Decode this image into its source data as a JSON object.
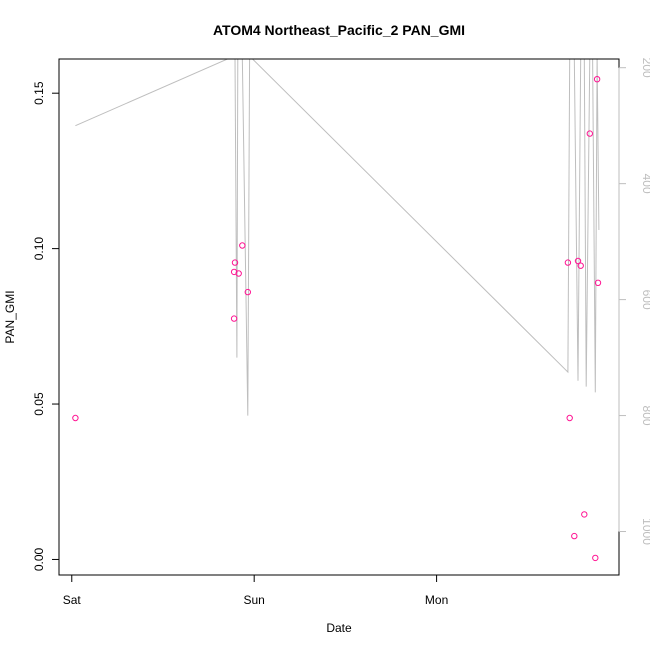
{
  "chart_data": {
    "type": "scatter",
    "title": "ATOM4 Northeast_Pacific_2 PAN_GMI",
    "xlabel": "Date",
    "ylabel": "PAN_GMI",
    "x_ticks": [
      {
        "label": "Sat",
        "value": 0
      },
      {
        "label": "Sun",
        "value": 1
      },
      {
        "label": "Mon",
        "value": 2
      }
    ],
    "xlim": [
      -0.07,
      3.0
    ],
    "ylim": [
      -0.005,
      0.161
    ],
    "y_ticks": [
      0.0,
      0.05,
      0.1,
      0.15
    ],
    "y_tick_labels": [
      "0.00",
      "0.05",
      "0.10",
      "0.15"
    ],
    "right_axis": {
      "label": "",
      "ylim": [
        1075,
        185
      ],
      "ticks": [
        200,
        400,
        600,
        800,
        1000
      ],
      "tick_labels": [
        "200",
        "400",
        "600",
        "800",
        "1000"
      ],
      "color": "#bebebe"
    },
    "points": {
      "color": "#ff1493",
      "x": [
        0.02,
        0.89,
        0.895,
        0.89,
        0.915,
        0.935,
        0.965,
        2.72,
        2.73,
        2.755,
        2.775,
        2.79,
        2.81,
        2.84,
        2.87,
        2.88,
        2.885
      ],
      "y": [
        0.0455,
        0.0925,
        0.0955,
        0.0775,
        0.092,
        0.101,
        0.086,
        0.0955,
        0.0455,
        0.0075,
        0.096,
        0.0945,
        0.0145,
        0.137,
        0.0005,
        0.1545,
        0.089
      ]
    },
    "altitude_line": {
      "color": "#bebebe",
      "x": [
        0.02,
        0.89,
        0.895,
        0.905,
        0.91,
        0.915,
        0.935,
        0.965,
        0.975,
        2.72,
        2.73,
        2.74,
        2.755,
        2.775,
        2.79,
        2.81,
        2.82,
        2.84,
        2.855,
        2.87,
        2.88,
        2.89
      ],
      "y": [
        300,
        180,
        180,
        700,
        180,
        180,
        180,
        800,
        180,
        725,
        180,
        180,
        180,
        740,
        180,
        180,
        750,
        180,
        180,
        760,
        180,
        480
      ]
    }
  }
}
